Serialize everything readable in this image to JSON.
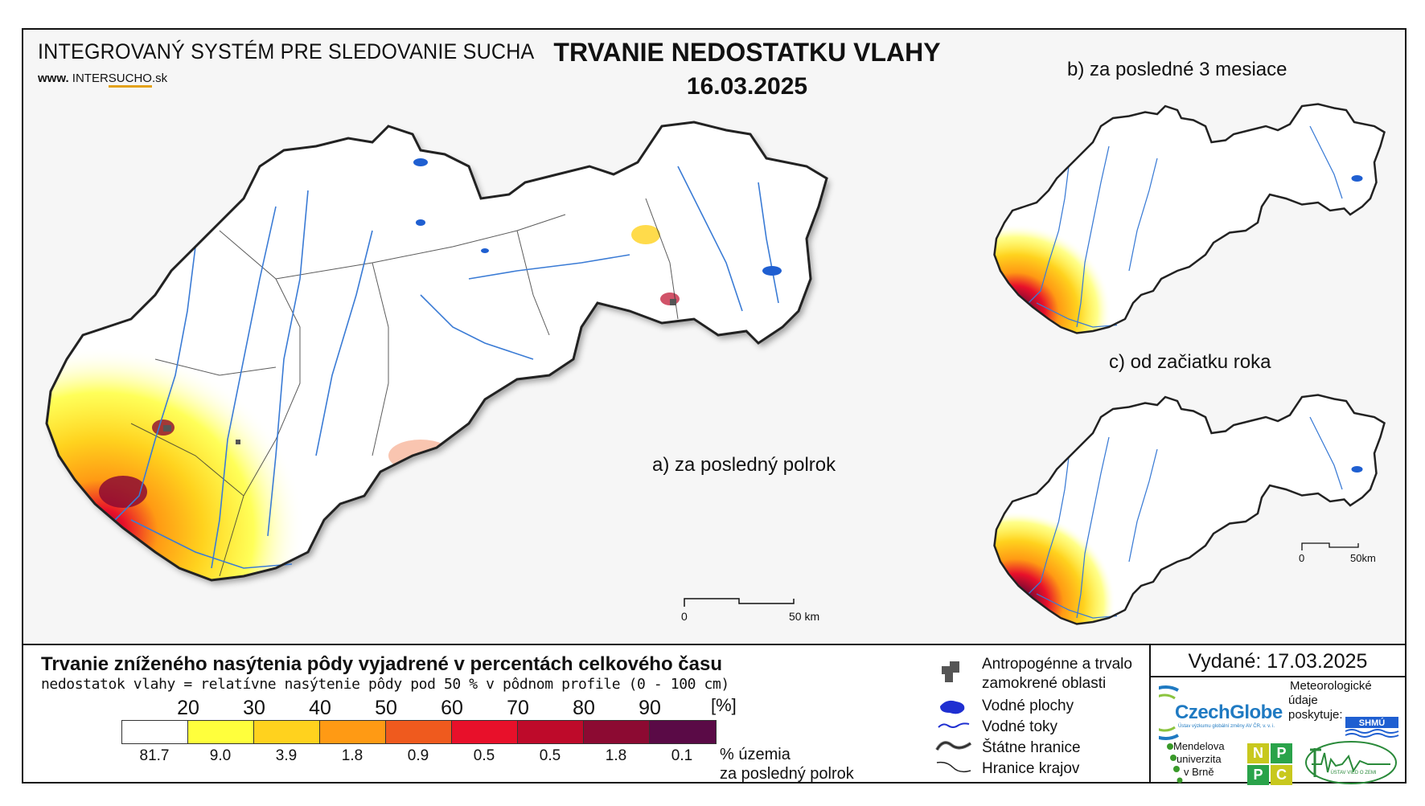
{
  "header": {
    "system_title": "INTEGROVANÝ SYSTÉM PRE SLEDOVANIE SUCHA",
    "website_prefix": "www.",
    "website_brand_a": "INTER",
    "website_brand_b": "SUCHO",
    "website_suffix": ".sk",
    "main_title": "TRVANIE NEDOSTATKU VLAHY",
    "date": "16.03.2025"
  },
  "panels": {
    "a_label": "a) za posledný polrok",
    "b_label": "b) za posledné 3 mesiace",
    "c_label": "c) od začiatku roka"
  },
  "scalebars": {
    "main_zero": "0",
    "main_end": "50 km",
    "small_zero": "0",
    "small_end": "50km"
  },
  "legend": {
    "title": "Trvanie zníženého nasýtenia pôdy vyjadrené v percentách celkového času",
    "subtitle": "nedostatok vlahy = relatívne nasýtenie pôdy pod 50 % v pôdnom profile (0 - 100 cm)",
    "ticks": [
      "20",
      "30",
      "40",
      "50",
      "60",
      "70",
      "80",
      "90"
    ],
    "unit": "[%]",
    "classes": [
      {
        "color": "#ffffff",
        "percent": "81.7"
      },
      {
        "color": "#ffff3c",
        "percent": "9.0"
      },
      {
        "color": "#ffd21e",
        "percent": "3.9"
      },
      {
        "color": "#ff9a14",
        "percent": "1.8"
      },
      {
        "color": "#ef5a1e",
        "percent": "0.9"
      },
      {
        "color": "#e8102a",
        "percent": "0.5"
      },
      {
        "color": "#be0a2a",
        "percent": "0.5"
      },
      {
        "color": "#8c0a32",
        "percent": "1.8"
      },
      {
        "color": "#5a0a46",
        "percent": "0.1"
      }
    ],
    "percent_label_line1": "% územia",
    "percent_label_line2": "za posledný polrok"
  },
  "symbols": {
    "anthro_line1": "Antropogénne a trvalo",
    "anthro_line2": "zamokrené oblasti",
    "water_areas": "Vodné plochy",
    "water_flows": "Vodné toky",
    "state_border": "Štátne hranice",
    "region_border": "Hranice krajov"
  },
  "issuer": {
    "issued": "Vydané: 17.03.2025",
    "czechglobe": "CzechGlobe",
    "czechglobe_sub": "Ústav výzkumu globální změny AV ČR, v. v. i.",
    "meteo_line1": "Meteorologické",
    "meteo_line2": "údaje",
    "meteo_line3": "poskytuje:",
    "shmu": "SHMÚ",
    "mendel_line1": "Mendelova",
    "mendel_line2": "univerzita",
    "mendel_line3": "v Brně",
    "nppc": [
      "N",
      "P",
      "P",
      "C"
    ],
    "uvz": "ÚSTAV VIED O ZEMI"
  },
  "colors": {
    "river": "#3a7bd5",
    "lake": "#1f5fd1",
    "border": "#222222",
    "anthro": "#555555"
  }
}
